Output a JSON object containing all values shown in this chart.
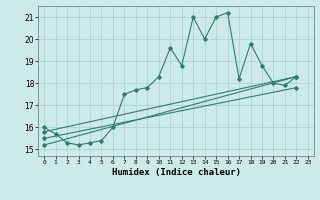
{
  "title": "",
  "xlabel": "Humidex (Indice chaleur)",
  "background_color": "#cceae7",
  "grid_color": "#b0d4d0",
  "line_color": "#2e7d6e",
  "xlim": [
    -0.5,
    23.5
  ],
  "ylim": [
    14.7,
    21.5
  ],
  "yticks": [
    15,
    16,
    17,
    18,
    19,
    20,
    21
  ],
  "xticks": [
    0,
    1,
    2,
    3,
    4,
    5,
    6,
    7,
    8,
    9,
    10,
    11,
    12,
    13,
    14,
    15,
    16,
    17,
    18,
    19,
    20,
    21,
    22,
    23
  ],
  "series1_x": [
    0,
    1,
    2,
    3,
    4,
    5,
    6,
    7,
    8,
    9,
    10,
    11,
    12,
    13,
    14,
    15,
    16,
    17,
    18,
    19,
    20,
    21,
    22
  ],
  "series1_y": [
    16.0,
    15.7,
    15.3,
    15.2,
    15.3,
    15.4,
    16.0,
    17.5,
    17.7,
    17.8,
    18.3,
    19.6,
    18.8,
    21.0,
    20.0,
    21.0,
    21.2,
    18.2,
    19.8,
    18.8,
    18.0,
    17.9,
    18.3
  ],
  "series2_x": [
    0,
    22
  ],
  "series2_y": [
    15.8,
    18.3
  ],
  "series3_x": [
    0,
    22
  ],
  "series3_y": [
    15.5,
    17.8
  ],
  "series4_x": [
    0,
    22
  ],
  "series4_y": [
    15.2,
    18.3
  ]
}
